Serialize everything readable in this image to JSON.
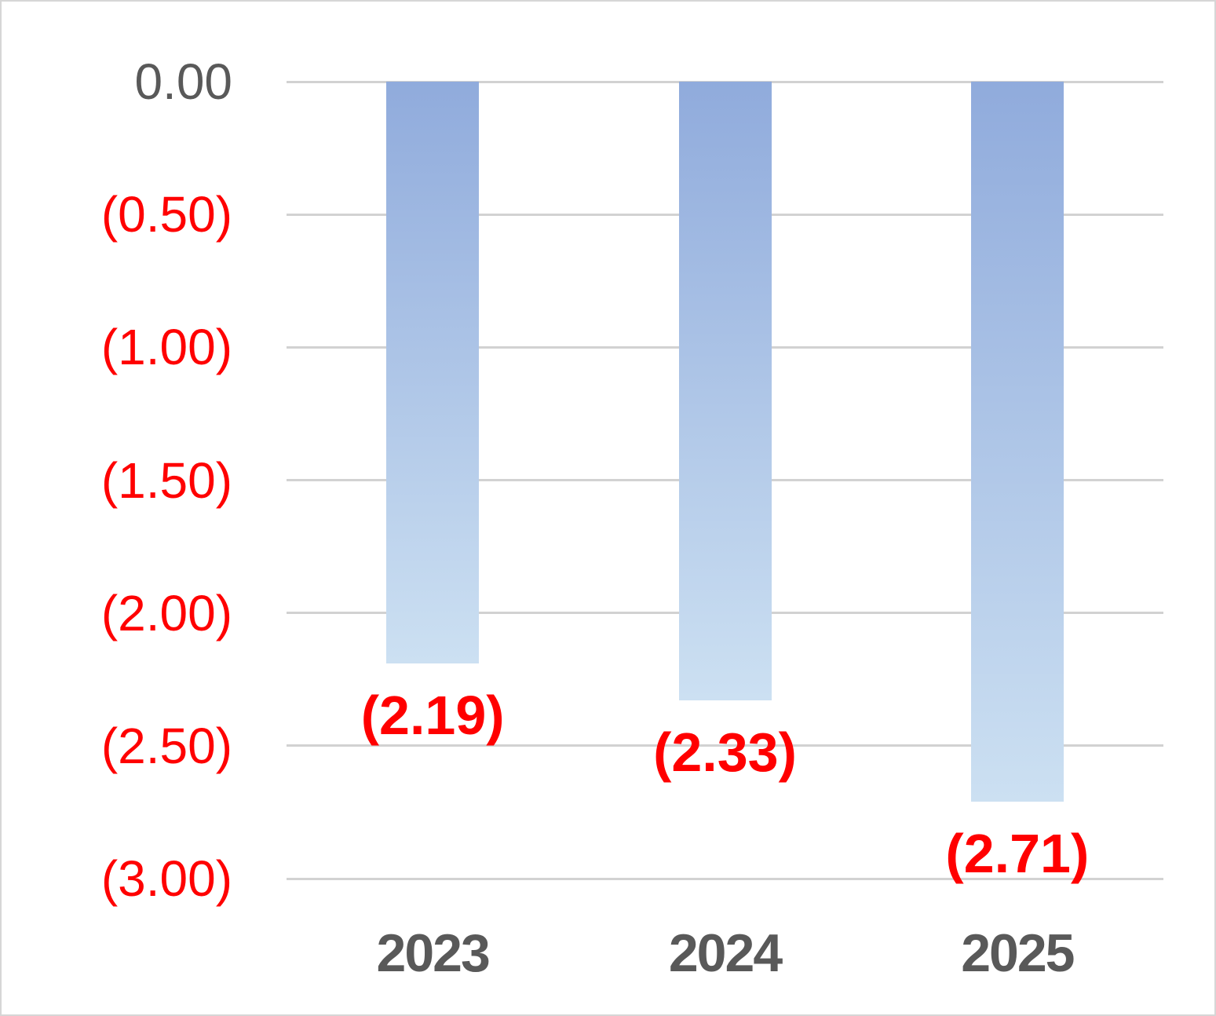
{
  "chart_data": {
    "type": "bar",
    "categories": [
      "2023",
      "2024",
      "2025"
    ],
    "values": [
      -2.19,
      -2.33,
      -2.71
    ],
    "data_labels": [
      "(2.19)",
      "(2.33)",
      "(2.71)"
    ],
    "title": "",
    "xlabel": "",
    "ylabel": "",
    "ylim": [
      -3.0,
      0.0
    ],
    "grid": true,
    "legend": false,
    "yticks": [
      {
        "value": 0.0,
        "label": "0.00",
        "color": "#595959",
        "has_paren": false
      },
      {
        "value": -0.5,
        "label": "(0.50)",
        "color": "#FF0000",
        "has_paren": true
      },
      {
        "value": -1.0,
        "label": "(1.00)",
        "color": "#FF0000",
        "has_paren": true
      },
      {
        "value": -1.5,
        "label": "(1.50)",
        "color": "#FF0000",
        "has_paren": true
      },
      {
        "value": -2.0,
        "label": "(2.00)",
        "color": "#FF0000",
        "has_paren": true
      },
      {
        "value": -2.5,
        "label": "(2.50)",
        "color": "#FF0000",
        "has_paren": true
      },
      {
        "value": -3.0,
        "label": "(3.00)",
        "color": "#FF0000",
        "has_paren": true
      }
    ],
    "colors": {
      "bar_gradient_top": "#90ABDC",
      "bar_gradient_bottom": "#CCE0F2",
      "gridline": "#D2D2D2",
      "data_label": "#FF0000",
      "category_label": "#595959",
      "frame_border": "#D6D6D6",
      "background": "#FFFFFF"
    }
  }
}
